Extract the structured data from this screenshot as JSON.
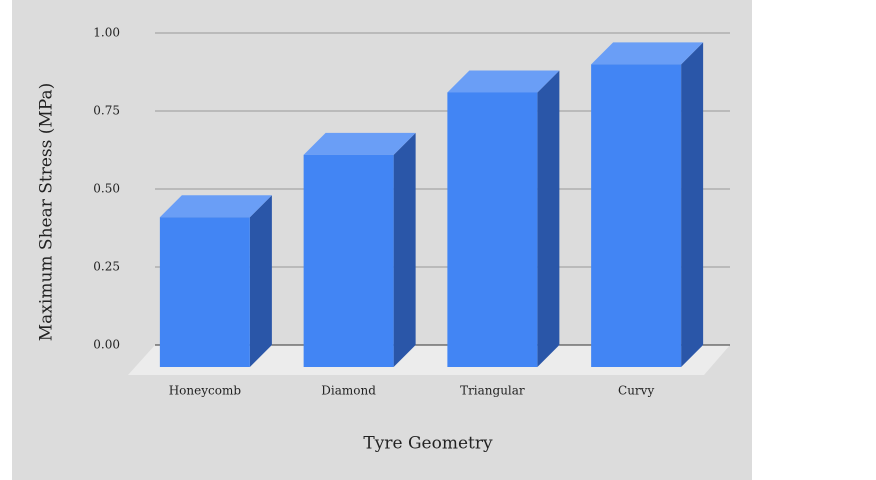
{
  "chart_data": {
    "type": "bar3d",
    "x_label": "Tyre Geometry",
    "y_label": "Maximum Shear Stress (MPa)",
    "categories": [
      "Honeycomb",
      "Diamond",
      "Triangular",
      "Curvy"
    ],
    "values": [
      0.48,
      0.68,
      0.88,
      0.97
    ],
    "color": "#4285f4",
    "ylim": [
      0,
      1
    ],
    "yticks": [
      {
        "value": 0,
        "label": "0.00"
      },
      {
        "value": 0.25,
        "label": "0.25"
      },
      {
        "value": 0.5,
        "label": "0.50"
      },
      {
        "value": 0.75,
        "label": "0.75"
      },
      {
        "value": 1,
        "label": "1.00"
      }
    ],
    "grid": true
  }
}
